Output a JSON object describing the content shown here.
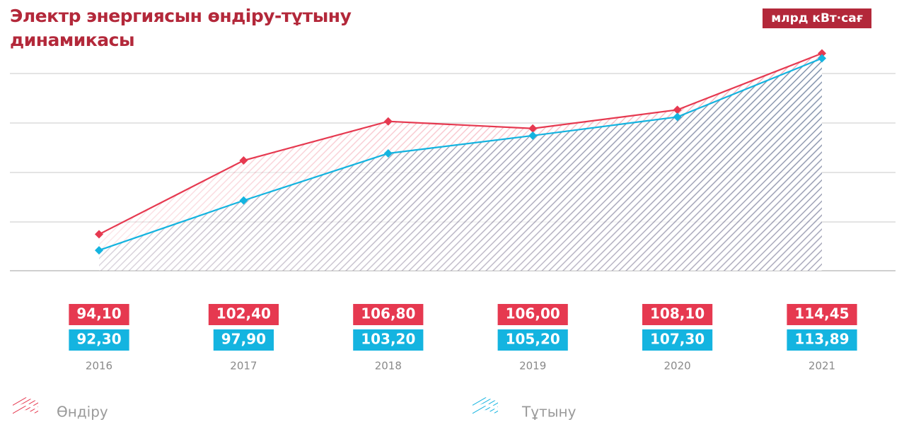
{
  "chart_data": {
    "type": "area",
    "title": "Электр энергиясын өндіру-тұтыну динамикасы",
    "unit_label": "млрд кВт·сағ",
    "categories": [
      "2016",
      "2017",
      "2018",
      "2019",
      "2020",
      "2021"
    ],
    "ylim": [
      90,
      116
    ],
    "series": [
      {
        "name": "Өндіру",
        "color": "#e63950",
        "values": [
          94.1,
          102.4,
          106.8,
          106.0,
          108.1,
          114.45
        ],
        "value_labels": [
          "94,10",
          "102,40",
          "106,80",
          "106,00",
          "108,10",
          "114,45"
        ]
      },
      {
        "name": "Тұтыну",
        "color": "#14b4e0",
        "values": [
          92.3,
          97.9,
          103.2,
          105.2,
          107.3,
          113.89
        ],
        "value_labels": [
          "92,30",
          "97,90",
          "103,20",
          "105,20",
          "107,30",
          "113,89"
        ]
      }
    ]
  }
}
